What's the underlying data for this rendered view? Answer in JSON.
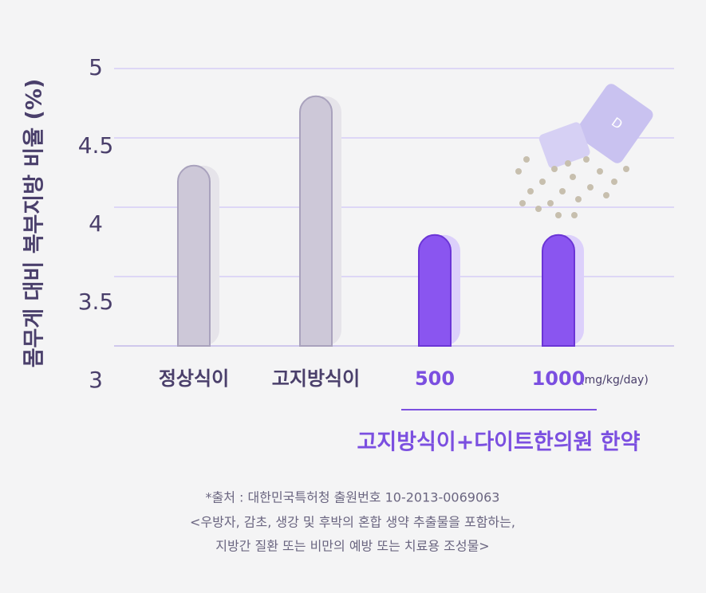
{
  "chart_data": {
    "type": "bar",
    "y_label": "몸무게 대비 복부지방 비율 (%)",
    "categories": [
      "정상식이",
      "고지방식이",
      "500",
      "1000"
    ],
    "values": [
      4.3,
      4.8,
      3.8,
      3.8
    ],
    "colors": [
      "#cdc8d8",
      "#cdc8d8",
      "#8a55f0",
      "#8a55f0"
    ],
    "unit_label": "(mg/kg/day)",
    "group_label": "고지방식이+다이트한의원 한약",
    "ylim": [
      3,
      5
    ],
    "yticks": [
      3,
      3.5,
      4,
      4.5,
      5
    ],
    "grid": true,
    "footnote": [
      "*출처 : 대한민국특허청 출원번호 10-2013-0069063",
      "<우방자, 감초, 생강 및 후박의 혼합 생약 추출물을 포함하는,",
      "지방간 질환 또는 비만의 예방 또는 치료용 조성물>"
    ]
  }
}
